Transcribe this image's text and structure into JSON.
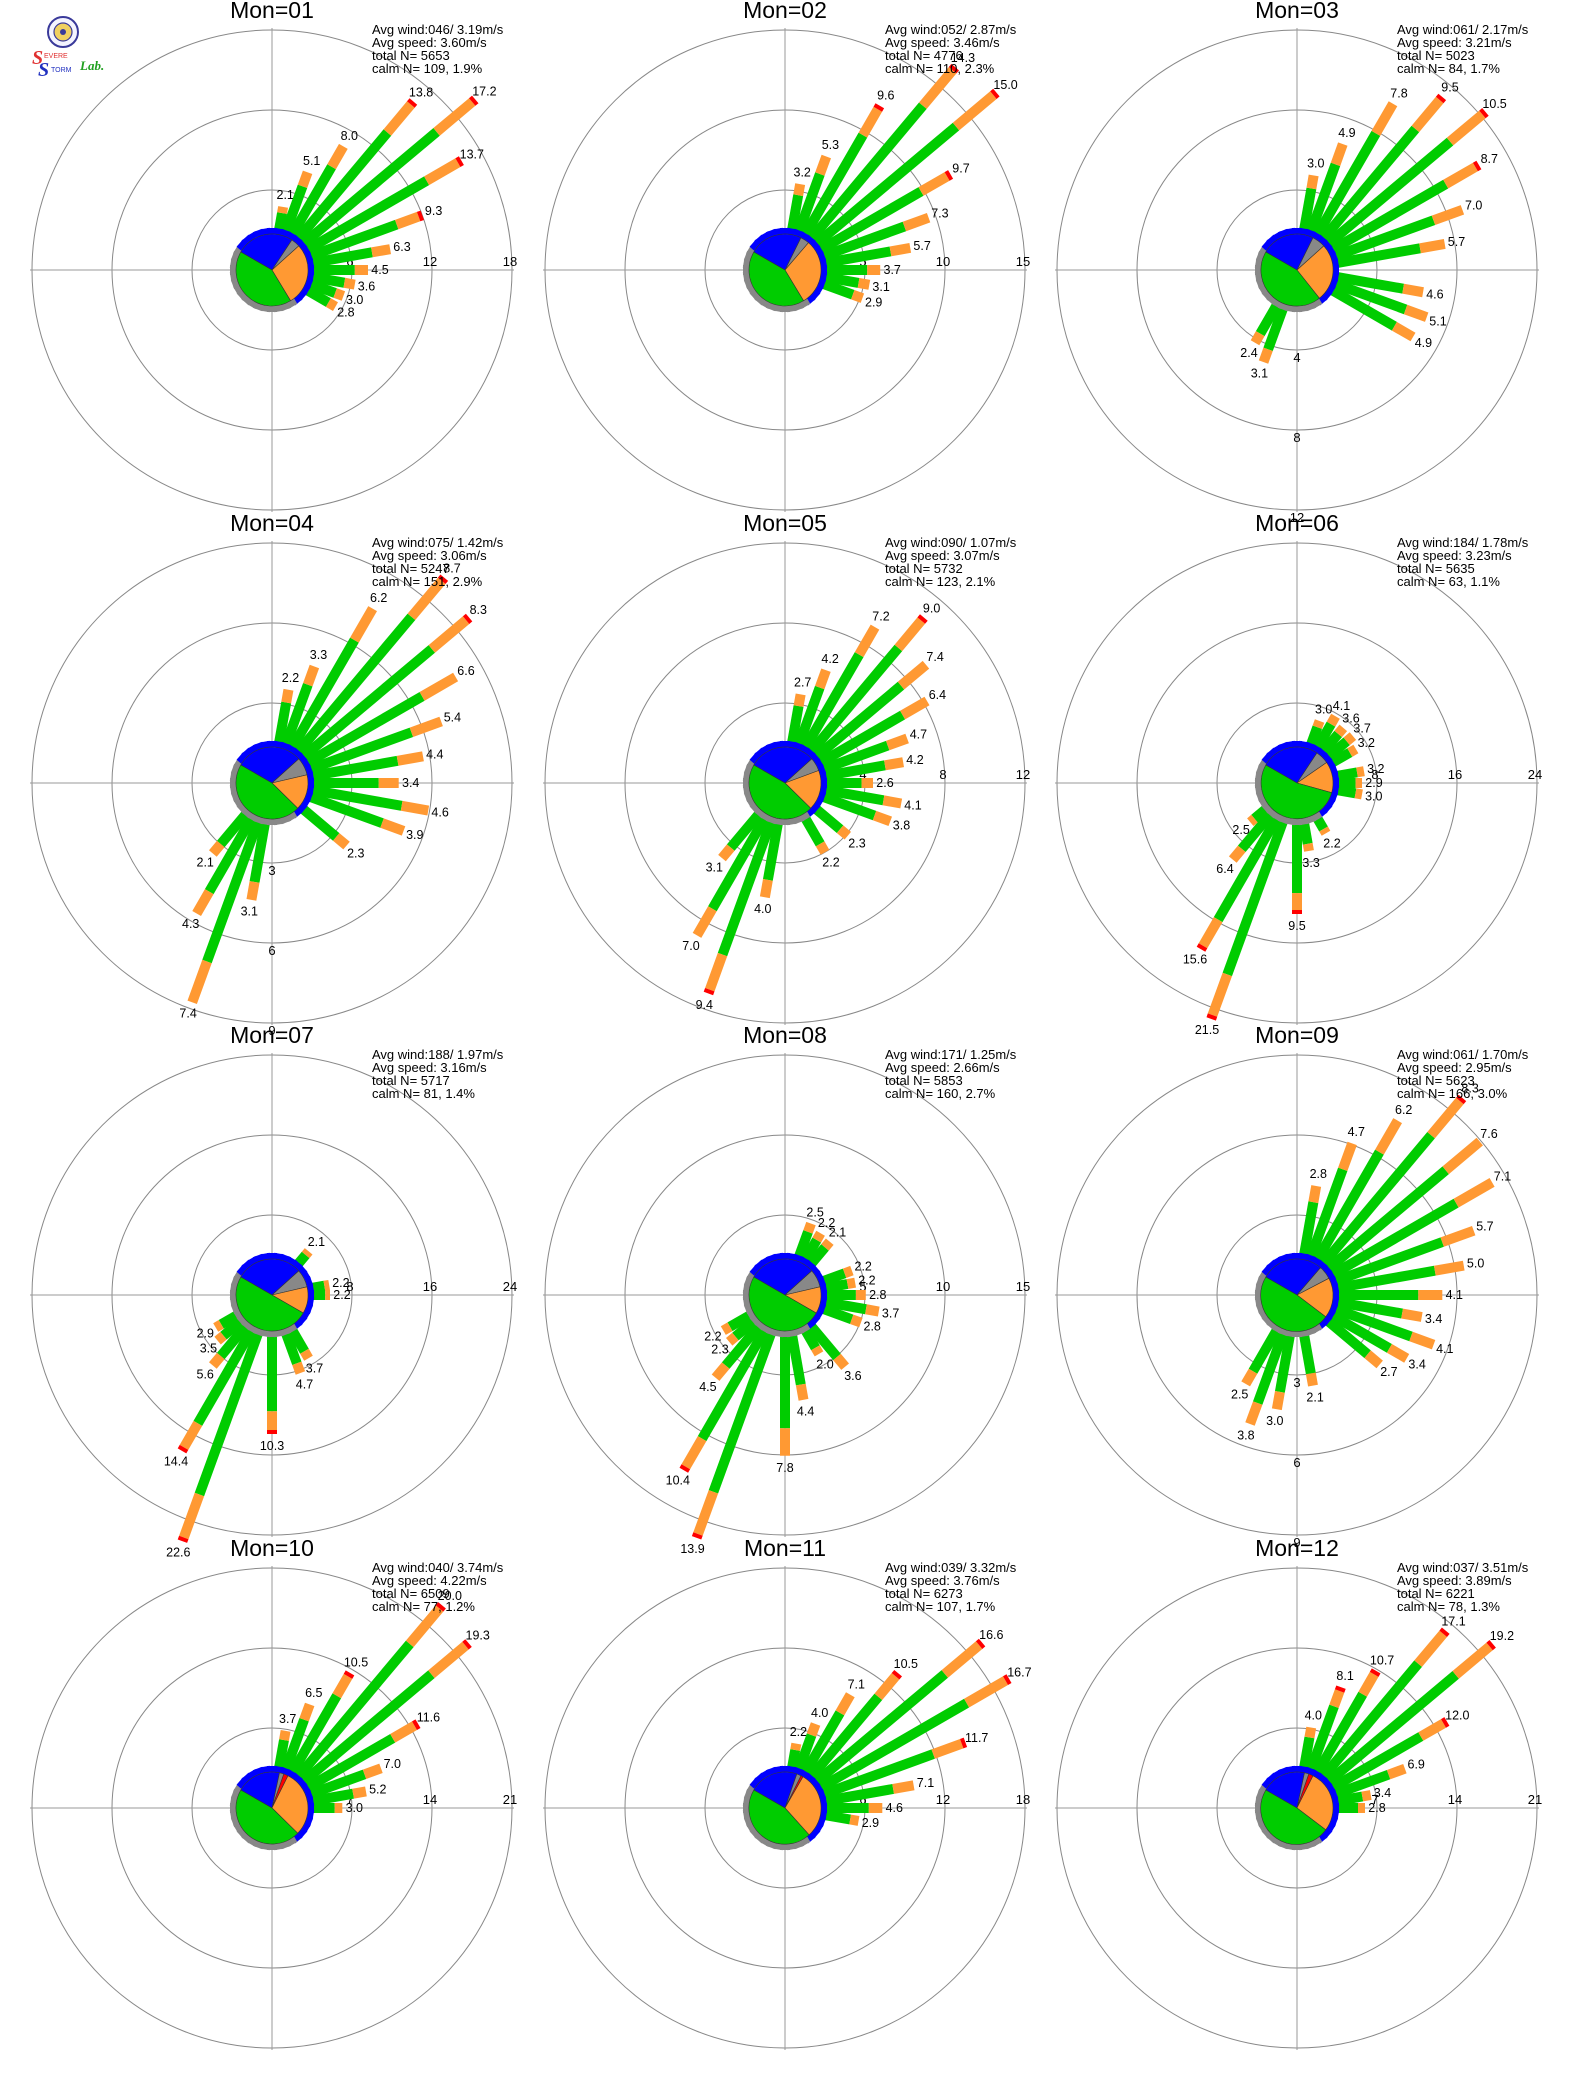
{
  "logo": {
    "letter_s1": "S",
    "word_evere": "EVERE",
    "letter_s2": "S",
    "word_torm": "TORM",
    "word_lab": "Lab."
  },
  "colors": {
    "blue": "#0000ff",
    "green": "#00cc00",
    "orange": "#ff9933",
    "red": "#ff0000",
    "gray": "#888888",
    "ring": "#888888",
    "axis": "#999999"
  },
  "stat_labels": {
    "avg_wind": "Avg wind:",
    "avg_speed": "Avg speed:",
    "total": "total N=",
    "calm": "calm N="
  },
  "chart_data": [
    {
      "type": "wind-rose",
      "title": "Mon=01",
      "avg_wind": "046/ 3.19m/s",
      "avg_speed": "3.60m/s",
      "total_n": "5653",
      "calm_n": "109,",
      "calm_pct": "1.9%",
      "ring_ticks": [
        6,
        12,
        18
      ],
      "tick_axis": "east",
      "max": 18,
      "pie": {
        "blue": 0.26,
        "gray": 0.04,
        "orange": 0.28,
        "green": 0.42
      },
      "bars": [
        [
          10,
          2.1
        ],
        [
          20,
          5.1
        ],
        [
          30,
          8.0
        ],
        [
          40,
          13.8
        ],
        [
          50,
          17.2
        ],
        [
          60,
          13.7
        ],
        [
          70,
          9.3
        ],
        [
          80,
          6.3
        ],
        [
          90,
          4.5
        ],
        [
          100,
          3.6
        ],
        [
          110,
          3.0
        ],
        [
          120,
          2.8
        ]
      ]
    },
    {
      "type": "wind-rose",
      "title": "Mon=02",
      "avg_wind": "052/ 2.87m/s",
      "avg_speed": "3.46m/s",
      "total_n": "4776",
      "calm_n": "110,",
      "calm_pct": "2.3%",
      "ring_ticks": [
        5,
        10,
        15
      ],
      "tick_axis": "east",
      "max": 15,
      "pie": {
        "blue": 0.24,
        "gray": 0.04,
        "orange": 0.3,
        "green": 0.42
      },
      "bars": [
        [
          10,
          3.2
        ],
        [
          20,
          5.3
        ],
        [
          30,
          9.6
        ],
        [
          40,
          14.3
        ],
        [
          50,
          15.0
        ],
        [
          60,
          9.7
        ],
        [
          70,
          7.3
        ],
        [
          80,
          5.7
        ],
        [
          90,
          3.7
        ],
        [
          100,
          3.1
        ],
        [
          110,
          2.9
        ]
      ]
    },
    {
      "type": "wind-rose",
      "title": "Mon=03",
      "avg_wind": "061/ 2.17m/s",
      "avg_speed": "3.21m/s",
      "total_n": "5023",
      "calm_n": "84,",
      "calm_pct": "1.7%",
      "ring_ticks": [
        4,
        8,
        12
      ],
      "tick_axis": "south",
      "max": 12,
      "pie": {
        "blue": 0.24,
        "gray": 0.06,
        "orange": 0.26,
        "green": 0.44
      },
      "bars": [
        [
          10,
          3.0
        ],
        [
          20,
          4.9
        ],
        [
          30,
          7.8
        ],
        [
          40,
          9.5
        ],
        [
          50,
          10.5
        ],
        [
          60,
          8.7
        ],
        [
          70,
          7.0
        ],
        [
          80,
          5.7
        ],
        [
          100,
          4.6
        ],
        [
          110,
          5.1
        ],
        [
          120,
          4.9
        ],
        [
          200,
          3.1
        ],
        [
          210,
          2.4
        ]
      ]
    },
    {
      "type": "wind-rose",
      "title": "Mon=04",
      "avg_wind": "075/ 1.42m/s",
      "avg_speed": "3.06m/s",
      "total_n": "5247",
      "calm_n": "151,",
      "calm_pct": "2.9%",
      "ring_ticks": [
        3,
        6,
        9
      ],
      "tick_axis": "south",
      "max": 9,
      "pie": {
        "blue": 0.3,
        "gray": 0.08,
        "orange": 0.16,
        "green": 0.46
      },
      "bars": [
        [
          10,
          2.2
        ],
        [
          20,
          3.3
        ],
        [
          30,
          6.2
        ],
        [
          40,
          8.7
        ],
        [
          50,
          8.3
        ],
        [
          60,
          6.6
        ],
        [
          70,
          5.4
        ],
        [
          80,
          4.4
        ],
        [
          90,
          3.4
        ],
        [
          100,
          4.6
        ],
        [
          110,
          3.9
        ],
        [
          130,
          2.3
        ],
        [
          190,
          3.1
        ],
        [
          200,
          7.4
        ],
        [
          210,
          4.3
        ],
        [
          220,
          2.1
        ]
      ]
    },
    {
      "type": "wind-rose",
      "title": "Mon=05",
      "avg_wind": "090/ 1.07m/s",
      "avg_speed": "3.07m/s",
      "total_n": "5732",
      "calm_n": "123,",
      "calm_pct": "2.1%",
      "ring_ticks": [
        4,
        8,
        12
      ],
      "tick_axis": "east",
      "max": 12,
      "pie": {
        "blue": 0.3,
        "gray": 0.06,
        "orange": 0.18,
        "green": 0.46
      },
      "bars": [
        [
          10,
          2.7
        ],
        [
          20,
          4.2
        ],
        [
          30,
          7.2
        ],
        [
          40,
          9.0
        ],
        [
          50,
          7.4
        ],
        [
          60,
          6.4
        ],
        [
          70,
          4.7
        ],
        [
          80,
          4.2
        ],
        [
          90,
          2.6
        ],
        [
          100,
          4.1
        ],
        [
          110,
          3.8
        ],
        [
          130,
          2.3
        ],
        [
          150,
          2.2
        ],
        [
          190,
          4.0
        ],
        [
          200,
          9.4
        ],
        [
          210,
          7.0
        ],
        [
          220,
          3.1
        ]
      ]
    },
    {
      "type": "wind-rose",
      "title": "Mon=06",
      "avg_wind": "184/ 1.78m/s",
      "avg_speed": "3.23m/s",
      "total_n": "5635",
      "calm_n": "63,",
      "calm_pct": "1.1%",
      "ring_ticks": [
        8,
        16,
        24
      ],
      "tick_axis": "east",
      "max": 24,
      "pie": {
        "blue": 0.26,
        "gray": 0.06,
        "orange": 0.14,
        "green": 0.54
      },
      "bars": [
        [
          20,
          3.0
        ],
        [
          30,
          4.1
        ],
        [
          40,
          3.6
        ],
        [
          50,
          3.7
        ],
        [
          60,
          3.2
        ],
        [
          80,
          3.2
        ],
        [
          90,
          2.9
        ],
        [
          100,
          3.0
        ],
        [
          150,
          2.2
        ],
        [
          170,
          3.3
        ],
        [
          180,
          9.5
        ],
        [
          200,
          21.5
        ],
        [
          210,
          15.6
        ],
        [
          220,
          6.4
        ],
        [
          230,
          2.5
        ]
      ]
    },
    {
      "type": "wind-rose",
      "title": "Mon=07",
      "avg_wind": "188/ 1.97m/s",
      "avg_speed": "3.16m/s",
      "total_n": "5717",
      "calm_n": "81,",
      "calm_pct": "1.4%",
      "ring_ticks": [
        8,
        16,
        24
      ],
      "tick_axis": "east",
      "max": 24,
      "pie": {
        "blue": 0.3,
        "gray": 0.08,
        "orange": 0.12,
        "green": 0.5
      },
      "bars": [
        [
          40,
          2.1
        ],
        [
          80,
          2.2
        ],
        [
          90,
          2.2
        ],
        [
          150,
          3.7
        ],
        [
          160,
          4.7
        ],
        [
          180,
          10.3
        ],
        [
          200,
          22.6
        ],
        [
          210,
          14.4
        ],
        [
          220,
          5.6
        ],
        [
          230,
          3.5
        ],
        [
          240,
          2.9
        ]
      ]
    },
    {
      "type": "wind-rose",
      "title": "Mon=08",
      "avg_wind": "171/ 1.25m/s",
      "avg_speed": "2.66m/s",
      "total_n": "5853",
      "calm_n": "160,",
      "calm_pct": "2.7%",
      "ring_ticks": [
        5,
        10,
        15
      ],
      "tick_axis": "east",
      "max": 15,
      "pie": {
        "blue": 0.3,
        "gray": 0.08,
        "orange": 0.12,
        "green": 0.5
      },
      "bars": [
        [
          20,
          2.5
        ],
        [
          30,
          2.2
        ],
        [
          40,
          2.1
        ],
        [
          70,
          2.2
        ],
        [
          80,
          2.2
        ],
        [
          90,
          2.8
        ],
        [
          100,
          3.7
        ],
        [
          110,
          2.8
        ],
        [
          140,
          3.6
        ],
        [
          150,
          2.0
        ],
        [
          170,
          4.4
        ],
        [
          180,
          7.8
        ],
        [
          200,
          13.9
        ],
        [
          210,
          10.4
        ],
        [
          220,
          4.5
        ],
        [
          230,
          2.3
        ],
        [
          240,
          2.2
        ]
      ]
    },
    {
      "type": "wind-rose",
      "title": "Mon=09",
      "avg_wind": "061/ 1.70m/s",
      "avg_speed": "2.95m/s",
      "total_n": "5623",
      "calm_n": "166,",
      "calm_pct": "3.0%",
      "ring_ticks": [
        3,
        6,
        9
      ],
      "tick_axis": "south",
      "max": 9,
      "pie": {
        "blue": 0.28,
        "gray": 0.06,
        "orange": 0.18,
        "green": 0.48
      },
      "bars": [
        [
          10,
          2.8
        ],
        [
          20,
          4.7
        ],
        [
          30,
          6.2
        ],
        [
          40,
          8.3
        ],
        [
          50,
          7.6
        ],
        [
          60,
          7.1
        ],
        [
          70,
          5.7
        ],
        [
          80,
          5.0
        ],
        [
          90,
          4.1
        ],
        [
          100,
          3.4
        ],
        [
          110,
          4.1
        ],
        [
          120,
          3.4
        ],
        [
          130,
          2.7
        ],
        [
          170,
          2.1
        ],
        [
          190,
          3.0
        ],
        [
          200,
          3.8
        ],
        [
          210,
          2.5
        ]
      ]
    },
    {
      "type": "wind-rose",
      "title": "Mon=10",
      "avg_wind": "040/ 3.74m/s",
      "avg_speed": "4.22m/s",
      "total_n": "6509",
      "calm_n": "77,",
      "calm_pct": "1.2%",
      "ring_ticks": [
        7,
        14,
        21
      ],
      "tick_axis": "east",
      "max": 21,
      "pie": {
        "blue": 0.2,
        "gray": 0.02,
        "red": 0.02,
        "orange": 0.3,
        "green": 0.46
      },
      "bars": [
        [
          10,
          3.7
        ],
        [
          20,
          6.5
        ],
        [
          30,
          10.5
        ],
        [
          40,
          20.0
        ],
        [
          50,
          19.3
        ],
        [
          60,
          11.6
        ],
        [
          70,
          7.0
        ],
        [
          80,
          5.2
        ],
        [
          90,
          3.0
        ]
      ]
    },
    {
      "type": "wind-rose",
      "title": "Mon=11",
      "avg_wind": "039/ 3.32m/s",
      "avg_speed": "3.76m/s",
      "total_n": "6273",
      "calm_n": "107,",
      "calm_pct": "1.7%",
      "ring_ticks": [
        6,
        12,
        18
      ],
      "tick_axis": "east",
      "max": 18,
      "pie": {
        "blue": 0.22,
        "gray": 0.02,
        "red": 0.01,
        "orange": 0.3,
        "green": 0.45
      },
      "bars": [
        [
          10,
          2.2
        ],
        [
          20,
          4.0
        ],
        [
          30,
          7.1
        ],
        [
          40,
          10.5
        ],
        [
          50,
          16.6
        ],
        [
          60,
          16.7
        ],
        [
          70,
          11.7
        ],
        [
          80,
          7.1
        ],
        [
          90,
          4.6
        ],
        [
          100,
          2.9
        ]
      ]
    },
    {
      "type": "wind-rose",
      "title": "Mon=12",
      "avg_wind": "037/ 3.51m/s",
      "avg_speed": "3.89m/s",
      "total_n": "6221",
      "calm_n": "78,",
      "calm_pct": "1.3%",
      "ring_ticks": [
        7,
        14,
        21
      ],
      "tick_axis": "east",
      "max": 21,
      "pie": {
        "blue": 0.2,
        "gray": 0.02,
        "red": 0.02,
        "orange": 0.28,
        "green": 0.48
      },
      "bars": [
        [
          10,
          4.0
        ],
        [
          20,
          8.1
        ],
        [
          30,
          10.7
        ],
        [
          40,
          17.1
        ],
        [
          50,
          19.2
        ],
        [
          60,
          12.0
        ],
        [
          70,
          6.9
        ],
        [
          80,
          3.4
        ],
        [
          90,
          2.8
        ]
      ]
    }
  ]
}
